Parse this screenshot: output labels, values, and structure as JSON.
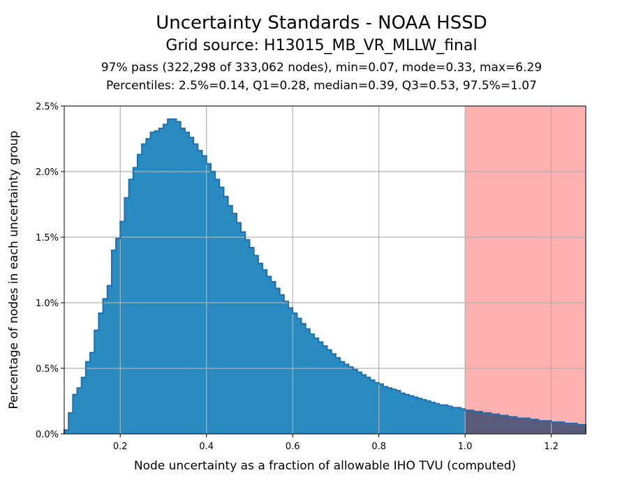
{
  "chart_data": {
    "type": "histogram",
    "title": "Uncertainty Standards - NOAA HSSD",
    "subtitle": "Grid source: H13015_MB_VR_MLLW_final",
    "stats_line": "97% pass (322,298 of 333,062 nodes), min=0.07, mode=0.33, max=6.29",
    "percentiles_line": "Percentiles: 2.5%=0.14, Q1=0.28, median=0.39, Q3=0.53, 97.5%=1.07",
    "xlabel": "Node uncertainty as a fraction of allowable IHO TVU (computed)",
    "ylabel": "Percentage of nodes in each uncertainty group",
    "xlim": [
      0.07,
      1.28
    ],
    "ylim": [
      0,
      2.5
    ],
    "x_ticks": [
      0.2,
      0.4,
      0.6,
      0.8,
      1.0,
      1.2
    ],
    "x_tick_labels": [
      "0.2",
      "0.4",
      "0.6",
      "0.8",
      "1.0",
      "1.2"
    ],
    "y_ticks": [
      0,
      0.5,
      1.0,
      1.5,
      2.0,
      2.5
    ],
    "y_tick_labels": [
      "0.0%",
      "0.5%",
      "1.0%",
      "1.5%",
      "2.0%",
      "2.5%"
    ],
    "grid": true,
    "fail_threshold": 1.0,
    "fail_region_color": "#ffb0b0",
    "fail_bar_color": "#5a5a7a",
    "bar_color": "#2a8bc0",
    "edge_color": "#1f6fae",
    "bin_width": 0.01,
    "bin_start": 0.07,
    "values": [
      0.03,
      0.16,
      0.3,
      0.35,
      0.43,
      0.55,
      0.62,
      0.79,
      0.92,
      1.03,
      1.13,
      1.4,
      1.49,
      1.62,
      1.8,
      1.94,
      2.03,
      2.13,
      2.21,
      2.25,
      2.3,
      2.31,
      2.33,
      2.36,
      2.4,
      2.4,
      2.38,
      2.33,
      2.3,
      2.26,
      2.21,
      2.16,
      2.12,
      2.06,
      2.0,
      1.94,
      1.88,
      1.81,
      1.74,
      1.68,
      1.61,
      1.54,
      1.48,
      1.42,
      1.36,
      1.3,
      1.25,
      1.2,
      1.16,
      1.11,
      1.06,
      1.01,
      0.96,
      0.92,
      0.88,
      0.84,
      0.8,
      0.76,
      0.73,
      0.7,
      0.67,
      0.64,
      0.61,
      0.58,
      0.55,
      0.53,
      0.51,
      0.49,
      0.47,
      0.45,
      0.43,
      0.41,
      0.39,
      0.38,
      0.36,
      0.35,
      0.34,
      0.33,
      0.31,
      0.3,
      0.29,
      0.28,
      0.27,
      0.26,
      0.25,
      0.24,
      0.23,
      0.22,
      0.22,
      0.21,
      0.2,
      0.2,
      0.19,
      0.18,
      0.18,
      0.17,
      0.17,
      0.16,
      0.16,
      0.15,
      0.15,
      0.14,
      0.14,
      0.13,
      0.13,
      0.12,
      0.12,
      0.12,
      0.11,
      0.11,
      0.1,
      0.1,
      0.1,
      0.09,
      0.09,
      0.09,
      0.08,
      0.08,
      0.08,
      0.07,
      0.07
    ]
  }
}
